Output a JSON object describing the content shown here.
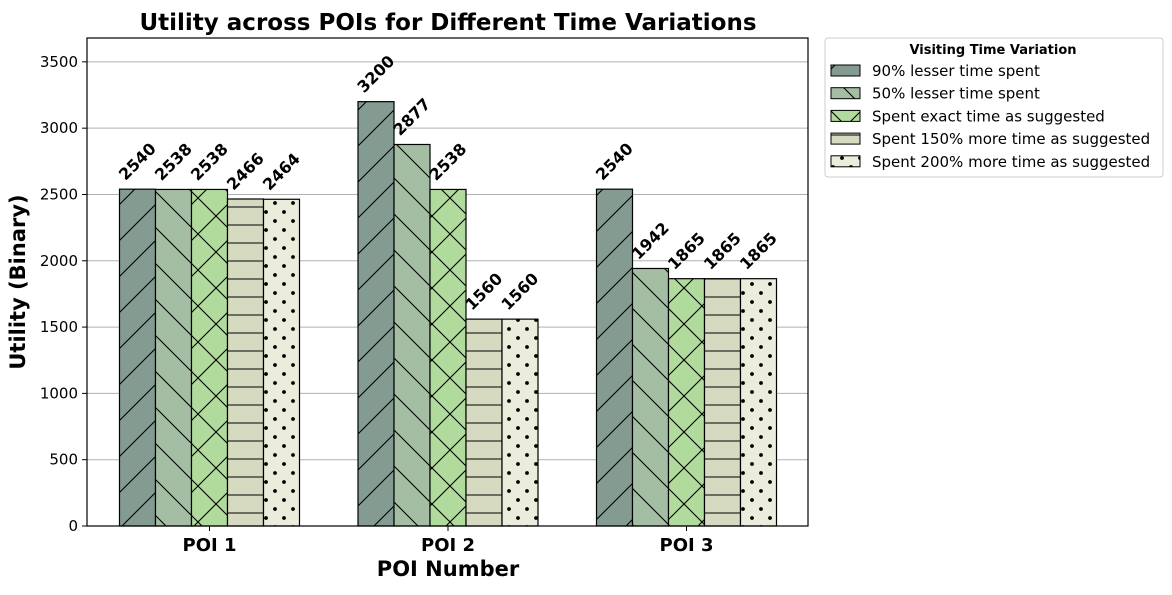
{
  "chart_data": {
    "type": "bar",
    "title": "Utility across POIs for Different Time Variations",
    "xlabel": "POI Number",
    "ylabel": "Utility (Binary)",
    "categories": [
      "POI 1",
      "POI 2",
      "POI 3"
    ],
    "ylim": [
      0,
      3680
    ],
    "yticks": [
      0,
      500,
      1000,
      1500,
      2000,
      2500,
      3000,
      3500
    ],
    "grid": "y",
    "legend_title": "Visiting Time Variation",
    "legend_position": "outside-top-right",
    "series": [
      {
        "name": "90% lesser time spent",
        "values": [
          2540,
          3200,
          2540
        ],
        "color": "#849b91",
        "hatch": "diagonal-forward"
      },
      {
        "name": "50% lesser time spent",
        "values": [
          2538,
          2877,
          1942
        ],
        "color": "#a4bea4",
        "hatch": "diagonal-back"
      },
      {
        "name": "Spent exact time as suggested",
        "values": [
          2538,
          2538,
          1865
        ],
        "color": "#b1db9c",
        "hatch": "cross"
      },
      {
        "name": "Spent 150% more time as suggested",
        "values": [
          2466,
          1560,
          1865
        ],
        "color": "#d5dac0",
        "hatch": "horizontal"
      },
      {
        "name": "Spent 200% more time as suggested",
        "values": [
          2464,
          1560,
          1865
        ],
        "color": "#ececdd",
        "hatch": "dots"
      }
    ]
  }
}
